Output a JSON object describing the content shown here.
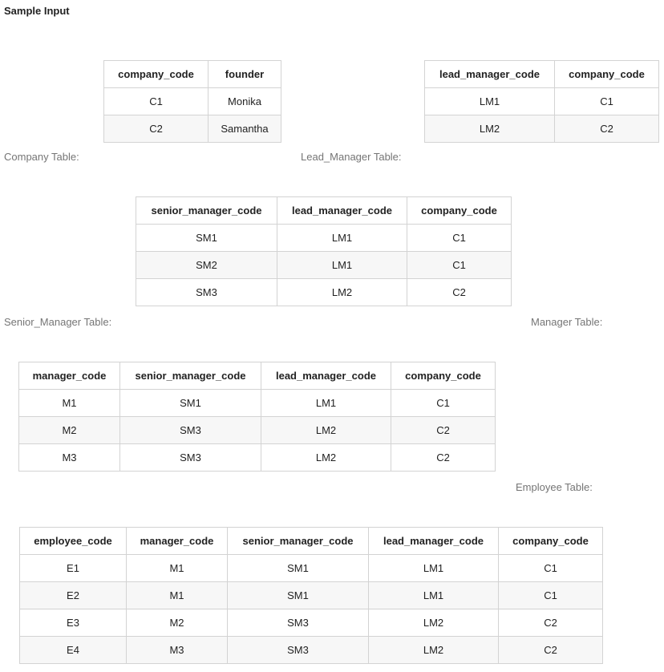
{
  "heading": "Sample Input",
  "tables": [
    {
      "caption": "Company Table:",
      "columns": [
        "company_code",
        "founder"
      ],
      "rows": [
        [
          "C1",
          "Monika"
        ],
        [
          "C2",
          "Samantha"
        ]
      ]
    },
    {
      "caption": "Lead_Manager Table:",
      "columns": [
        "lead_manager_code",
        "company_code"
      ],
      "rows": [
        [
          "LM1",
          "C1"
        ],
        [
          "LM2",
          "C2"
        ]
      ]
    },
    {
      "caption": "Senior_Manager Table:",
      "columns": [
        "senior_manager_code",
        "lead_manager_code",
        "company_code"
      ],
      "rows": [
        [
          "SM1",
          "LM1",
          "C1"
        ],
        [
          "SM2",
          "LM1",
          "C1"
        ],
        [
          "SM3",
          "LM2",
          "C2"
        ]
      ]
    },
    {
      "caption": "Manager Table:",
      "columns": [
        "manager_code",
        "senior_manager_code",
        "lead_manager_code",
        "company_code"
      ],
      "rows": [
        [
          "M1",
          "SM1",
          "LM1",
          "C1"
        ],
        [
          "M2",
          "SM3",
          "LM2",
          "C2"
        ],
        [
          "M3",
          "SM3",
          "LM2",
          "C2"
        ]
      ]
    },
    {
      "caption": "Employee Table:",
      "columns": [
        "employee_code",
        "manager_code",
        "senior_manager_code",
        "lead_manager_code",
        "company_code"
      ],
      "rows": [
        [
          "E1",
          "M1",
          "SM1",
          "LM1",
          "C1"
        ],
        [
          "E2",
          "M1",
          "SM1",
          "LM1",
          "C1"
        ],
        [
          "E3",
          "M2",
          "SM3",
          "LM2",
          "C2"
        ],
        [
          "E4",
          "M3",
          "SM3",
          "LM2",
          "C2"
        ]
      ]
    }
  ]
}
